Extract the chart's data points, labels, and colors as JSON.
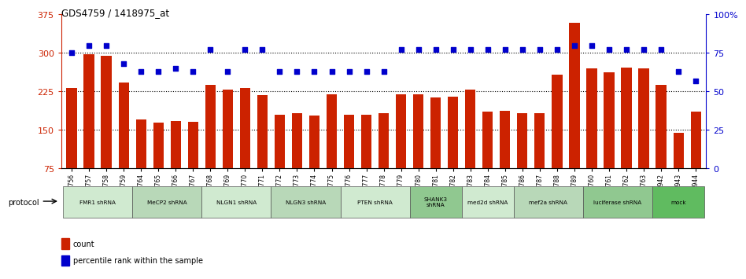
{
  "title": "GDS4759 / 1418975_at",
  "samples": [
    "GSM1145756",
    "GSM1145757",
    "GSM1145758",
    "GSM1145759",
    "GSM1145764",
    "GSM1145765",
    "GSM1145766",
    "GSM1145767",
    "GSM1145768",
    "GSM1145769",
    "GSM1145770",
    "GSM1145771",
    "GSM1145772",
    "GSM1145773",
    "GSM1145774",
    "GSM1145775",
    "GSM1145776",
    "GSM1145777",
    "GSM1145778",
    "GSM1145779",
    "GSM1145780",
    "GSM1145781",
    "GSM1145782",
    "GSM1145783",
    "GSM1145784",
    "GSM1145785",
    "GSM1145786",
    "GSM1145787",
    "GSM1145788",
    "GSM1145789",
    "GSM1145760",
    "GSM1145761",
    "GSM1145762",
    "GSM1145763",
    "GSM1145942",
    "GSM1145943",
    "GSM1145944"
  ],
  "bar_values": [
    232,
    298,
    295,
    242,
    170,
    165,
    167,
    166,
    237,
    228,
    232,
    218,
    180,
    182,
    178,
    220,
    180,
    180,
    182,
    220,
    220,
    213,
    215,
    228,
    185,
    187,
    182,
    183,
    258,
    358,
    270,
    262,
    272,
    270,
    237,
    145,
    185
  ],
  "percentile_values": [
    75,
    80,
    80,
    68,
    63,
    63,
    65,
    63,
    77,
    63,
    77,
    77,
    63,
    63,
    63,
    63,
    63,
    63,
    63,
    77,
    77,
    77,
    77,
    77,
    77,
    77,
    77,
    77,
    77,
    80,
    80,
    77,
    77,
    77,
    77,
    63,
    57
  ],
  "protocols": [
    {
      "label": "FMR1 shRNA",
      "start": 0,
      "end": 4,
      "color": "#d0ead0"
    },
    {
      "label": "MeCP2 shRNA",
      "start": 4,
      "end": 8,
      "color": "#b8d8b8"
    },
    {
      "label": "NLGN1 shRNA",
      "start": 8,
      "end": 12,
      "color": "#d0ead0"
    },
    {
      "label": "NLGN3 shRNA",
      "start": 12,
      "end": 16,
      "color": "#b8d8b8"
    },
    {
      "label": "PTEN shRNA",
      "start": 16,
      "end": 20,
      "color": "#d0ead0"
    },
    {
      "label": "SHANK3\nshRNA",
      "start": 20,
      "end": 23,
      "color": "#90c890"
    },
    {
      "label": "med2d shRNA",
      "start": 23,
      "end": 26,
      "color": "#d0ead0"
    },
    {
      "label": "mef2a shRNA",
      "start": 26,
      "end": 30,
      "color": "#b8d8b8"
    },
    {
      "label": "luciferase shRNA",
      "start": 30,
      "end": 34,
      "color": "#90c890"
    },
    {
      "label": "mock",
      "start": 34,
      "end": 37,
      "color": "#60bb60"
    }
  ],
  "ylim_left": [
    75,
    375
  ],
  "ylim_right": [
    0,
    100
  ],
  "yticks_left": [
    75,
    150,
    225,
    300,
    375
  ],
  "yticks_right": [
    0,
    25,
    50,
    75,
    100
  ],
  "ytick_right_labels": [
    "0",
    "25",
    "50",
    "75",
    "100%"
  ],
  "bar_color": "#cc2200",
  "dot_color": "#0000cc",
  "plot_bg": "#ffffff"
}
